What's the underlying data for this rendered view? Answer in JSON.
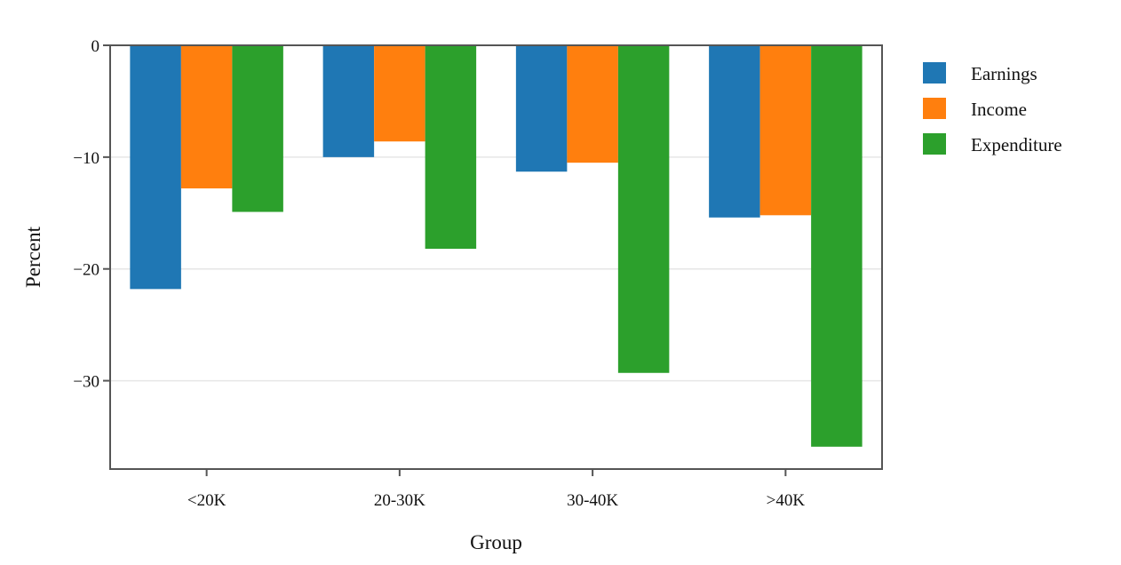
{
  "chart_data": {
    "type": "bar",
    "categories": [
      "<20K",
      "20-30K",
      "30-40K",
      ">40K"
    ],
    "series": [
      {
        "name": "Earnings",
        "color": "#1f77b4",
        "values": [
          -21.8,
          -10.0,
          -11.3,
          -15.4
        ]
      },
      {
        "name": "Income",
        "color": "#ff7f0e",
        "values": [
          -12.8,
          -8.6,
          -10.5,
          -15.2
        ]
      },
      {
        "name": "Expenditure",
        "color": "#2ca02c",
        "values": [
          -14.9,
          -18.2,
          -29.3,
          -35.9
        ]
      }
    ],
    "xlabel": "Group",
    "ylabel": "Percent",
    "ylim": [
      -37.9,
      0
    ],
    "yticks": [
      0,
      -10,
      -20,
      -30
    ],
    "ytick_labels": [
      "0",
      "−10",
      "−20",
      "−30"
    ],
    "grid": true,
    "legend_position": "right"
  }
}
